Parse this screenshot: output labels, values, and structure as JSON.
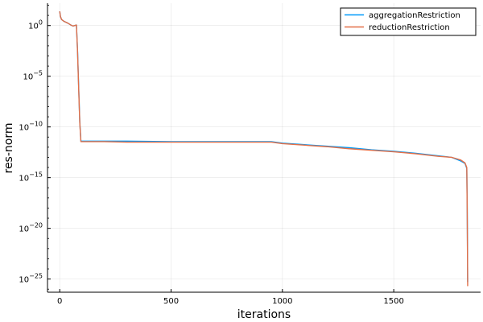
{
  "chart_data": {
    "type": "line",
    "title": "",
    "xlabel": "iterations",
    "ylabel": "res-norm",
    "yscale": "log10",
    "xlim": [
      -55,
      1890
    ],
    "ylim_log10": [
      -26.3,
      2.2
    ],
    "grid": true,
    "legend_position": "top-right",
    "x_ticks": [
      0,
      500,
      1000,
      1500
    ],
    "x_tick_labels": [
      "0",
      "500",
      "1000",
      "1500"
    ],
    "y_ticks_log10": [
      0,
      -5,
      -10,
      -15,
      -20,
      -25
    ],
    "y_tick_labels": [
      {
        "base": "10",
        "exp": "0"
      },
      {
        "base": "10",
        "exp": "−5"
      },
      {
        "base": "10",
        "exp": "−10"
      },
      {
        "base": "10",
        "exp": "−15"
      },
      {
        "base": "10",
        "exp": "−20"
      },
      {
        "base": "10",
        "exp": "−25"
      }
    ],
    "series": [
      {
        "name": "aggregationRestriction",
        "color": "#009AFA",
        "log10_values": [
          [
            0,
            1.4
          ],
          [
            3,
            0.9
          ],
          [
            8,
            0.6
          ],
          [
            20,
            0.4
          ],
          [
            35,
            0.25
          ],
          [
            50,
            0.05
          ],
          [
            60,
            -0.05
          ],
          [
            75,
            0.05
          ],
          [
            80,
            -2.5
          ],
          [
            85,
            -6.0
          ],
          [
            90,
            -9.5
          ],
          [
            95,
            -11.4
          ],
          [
            100,
            -11.4
          ],
          [
            200,
            -11.4
          ],
          [
            300,
            -11.4
          ],
          [
            500,
            -11.45
          ],
          [
            800,
            -11.45
          ],
          [
            950,
            -11.45
          ],
          [
            1000,
            -11.6
          ],
          [
            1100,
            -11.75
          ],
          [
            1200,
            -11.9
          ],
          [
            1300,
            -12.05
          ],
          [
            1400,
            -12.25
          ],
          [
            1500,
            -12.4
          ],
          [
            1600,
            -12.6
          ],
          [
            1700,
            -12.85
          ],
          [
            1760,
            -13.0
          ],
          [
            1800,
            -13.35
          ],
          [
            1820,
            -13.6
          ],
          [
            1828,
            -14.1
          ],
          [
            1830,
            -18.0
          ],
          [
            1832,
            -25.3
          ]
        ]
      },
      {
        "name": "reductionRestriction",
        "color": "#E36F47",
        "log10_values": [
          [
            0,
            1.4
          ],
          [
            3,
            0.9
          ],
          [
            8,
            0.6
          ],
          [
            20,
            0.4
          ],
          [
            35,
            0.25
          ],
          [
            50,
            0.05
          ],
          [
            60,
            -0.05
          ],
          [
            75,
            0.05
          ],
          [
            80,
            -2.6
          ],
          [
            85,
            -6.2
          ],
          [
            90,
            -9.6
          ],
          [
            95,
            -11.45
          ],
          [
            100,
            -11.45
          ],
          [
            200,
            -11.45
          ],
          [
            300,
            -11.5
          ],
          [
            500,
            -11.5
          ],
          [
            800,
            -11.5
          ],
          [
            950,
            -11.5
          ],
          [
            1000,
            -11.65
          ],
          [
            1100,
            -11.8
          ],
          [
            1200,
            -11.95
          ],
          [
            1300,
            -12.15
          ],
          [
            1400,
            -12.3
          ],
          [
            1500,
            -12.45
          ],
          [
            1600,
            -12.65
          ],
          [
            1700,
            -12.9
          ],
          [
            1760,
            -13.0
          ],
          [
            1800,
            -13.25
          ],
          [
            1820,
            -13.55
          ],
          [
            1828,
            -14.0
          ],
          [
            1830,
            -18.5
          ],
          [
            1832,
            -25.7
          ]
        ]
      }
    ]
  }
}
